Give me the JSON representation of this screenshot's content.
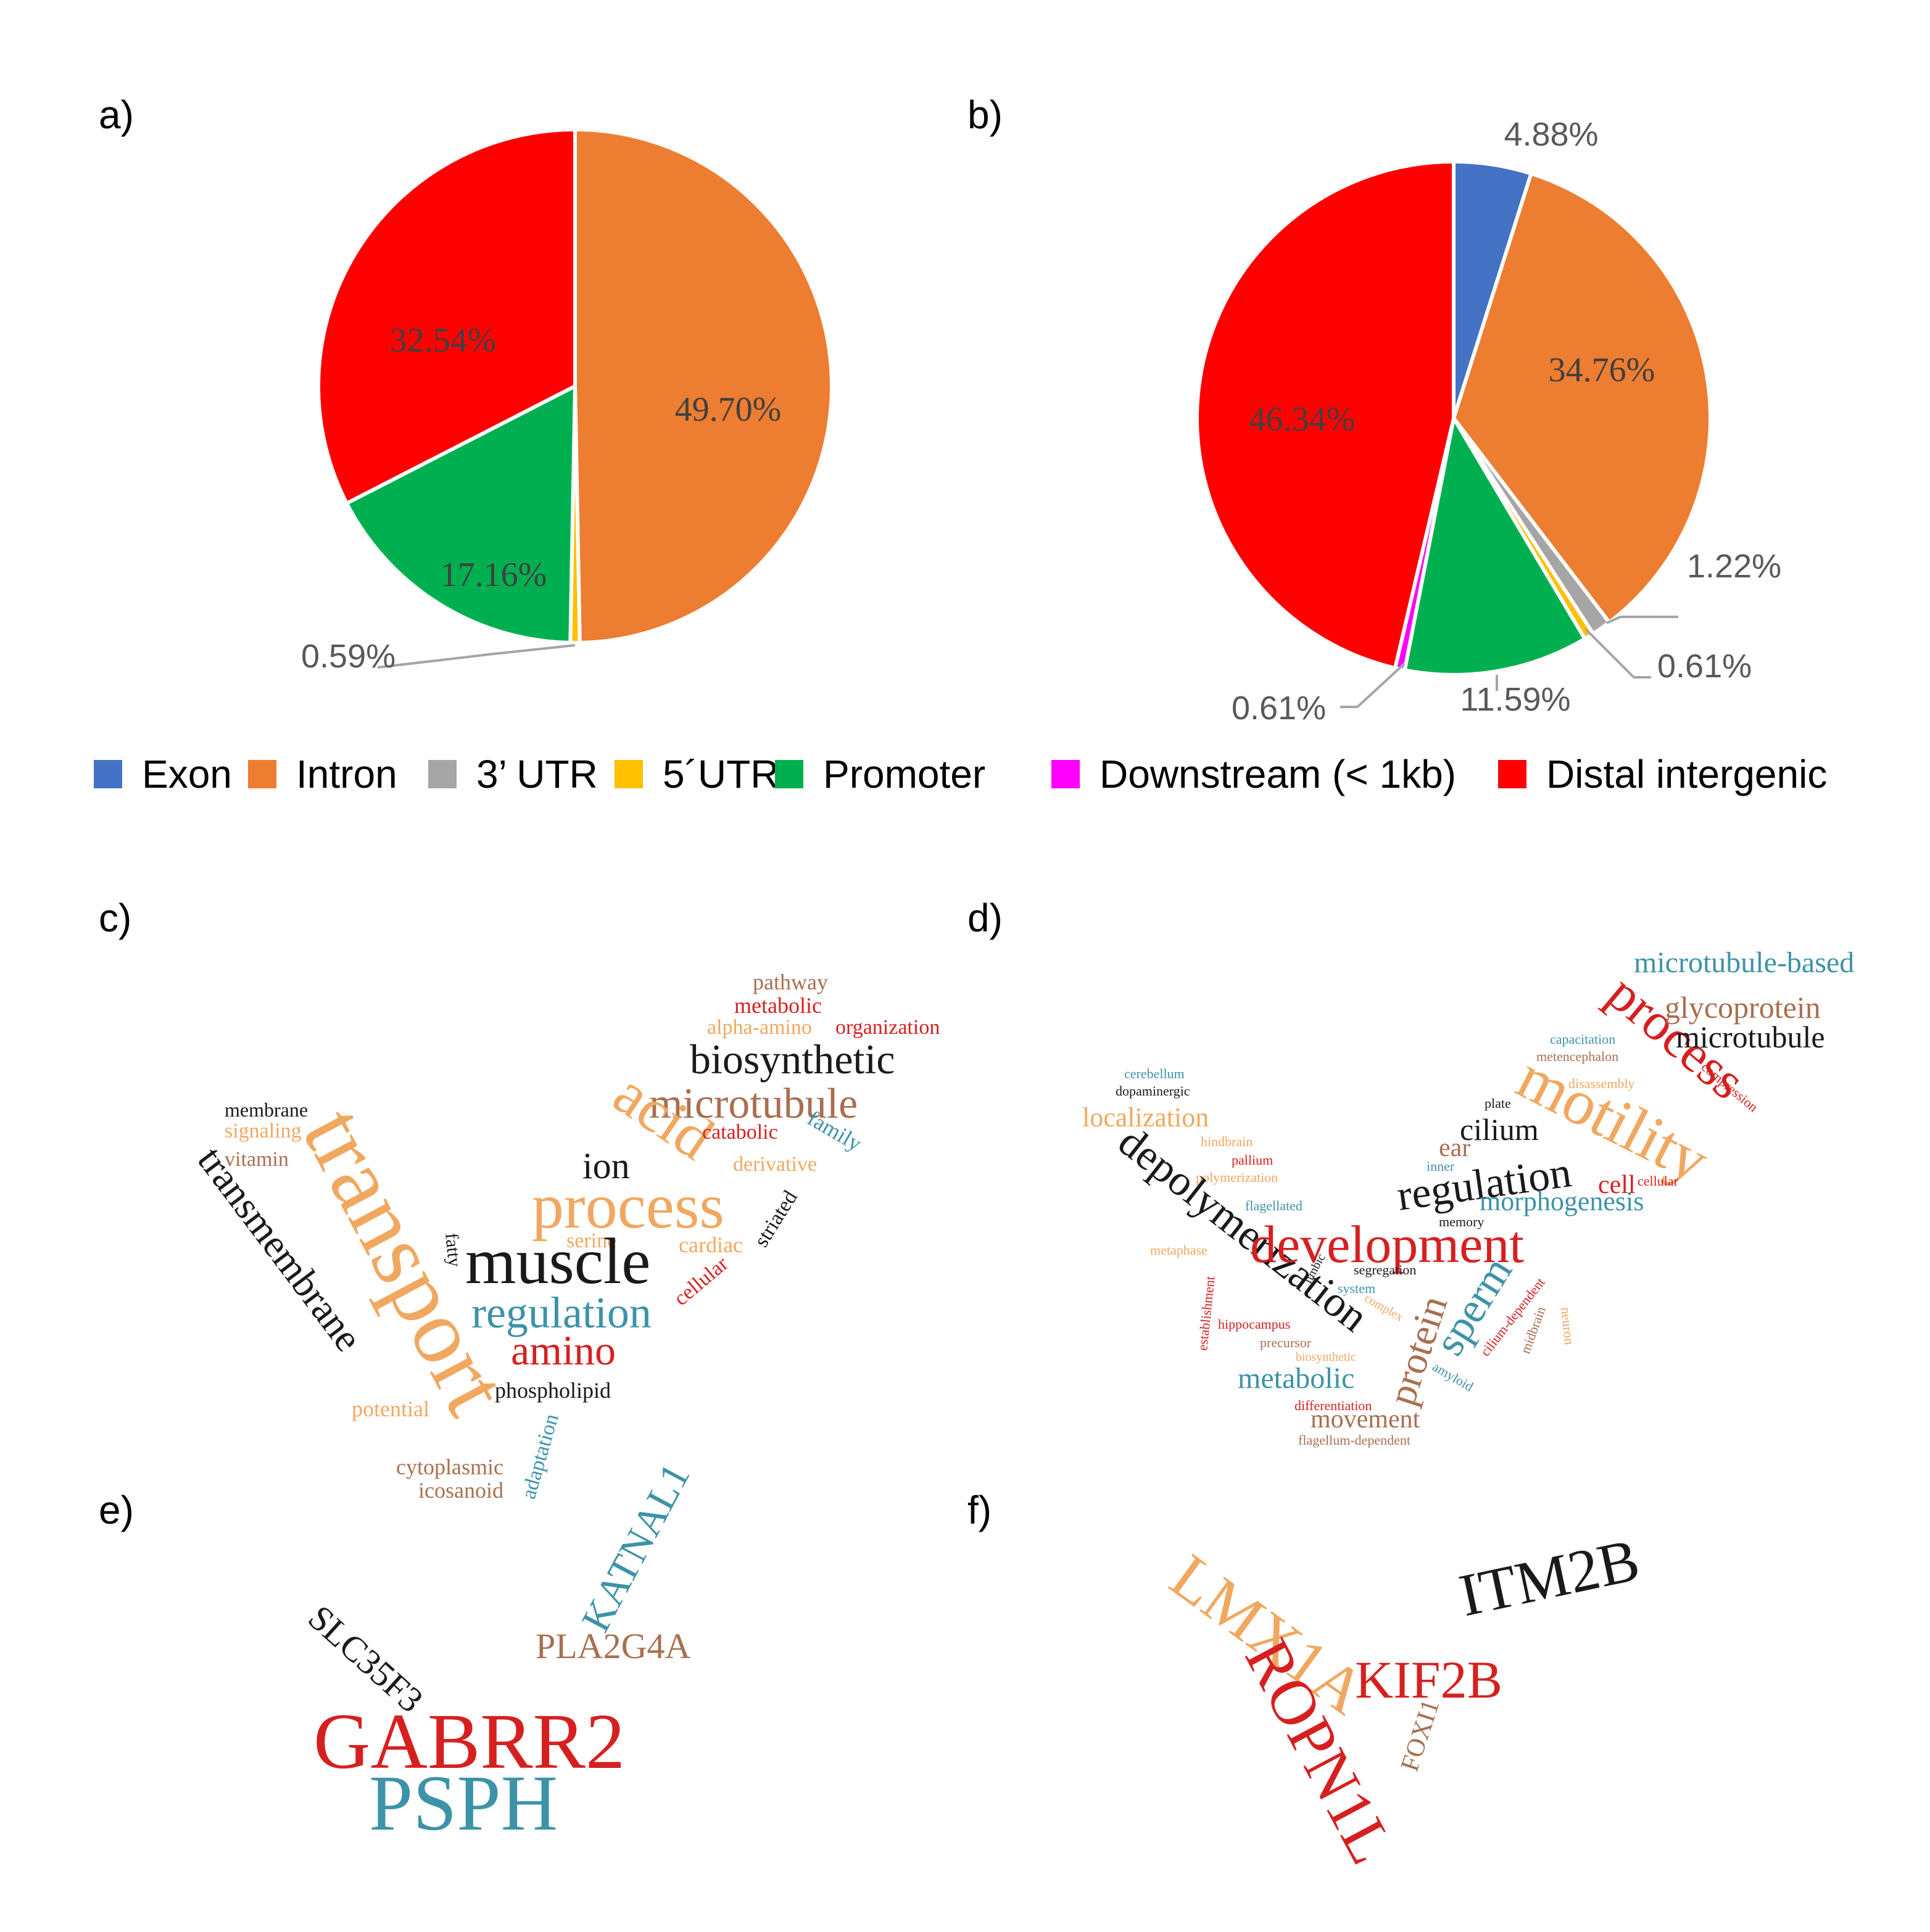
{
  "figure": {
    "panel_labels": [
      "a)",
      "b)",
      "c)",
      "d)",
      "e)",
      "f)"
    ]
  },
  "colors": {
    "Exon": "#4472C4",
    "Intron": "#ED7D31",
    "3' UTR": "#A5A5A5",
    "5'UTR": "#FFC000",
    "Promoter": "#00B050",
    "Downstream": "#FF00FF",
    "Distal": "#FF0000",
    "leader": "#A5A5A5",
    "wc_palette": {
      "orange": "#F0A860",
      "black": "#1A1A1A",
      "red": "#D62020",
      "blue": "#3D93A8",
      "brown": "#A86F50"
    }
  },
  "chart_data": [
    {
      "type": "pie",
      "panel": "a)",
      "categories": [
        "Exon",
        "Intron",
        "3' UTR",
        "5'UTR",
        "Promoter",
        "Downstream (< 1kb)",
        "Distal intergenic"
      ],
      "values": [
        0,
        49.7,
        0,
        0.59,
        17.16,
        0,
        32.54
      ],
      "labels": [
        "",
        "49.70%",
        "",
        "0.59%",
        "17.16%",
        "",
        "32.54%"
      ]
    },
    {
      "type": "pie",
      "panel": "b)",
      "categories": [
        "Exon",
        "Intron",
        "3' UTR",
        "5'UTR",
        "Promoter",
        "Downstream (< 1kb)",
        "Distal intergenic"
      ],
      "values": [
        4.88,
        34.76,
        1.22,
        0.61,
        11.59,
        0.61,
        46.34
      ],
      "labels": [
        "4.88%",
        "34.76%",
        "1.22%",
        "0.61%",
        "11.59%",
        "0.61%",
        "46.34%"
      ]
    }
  ],
  "legend": {
    "items": [
      "Exon",
      "Intron",
      "3’ UTR",
      "5´UTR",
      "Promoter",
      "Downstream (< 1kb)",
      "Distal intergenic"
    ]
  },
  "wordclouds": {
    "c": [
      {
        "t": "pathway",
        "c": "brown"
      },
      {
        "t": "metabolic",
        "c": "red"
      },
      {
        "t": "alpha-amino",
        "c": "orange"
      },
      {
        "t": "organization",
        "c": "red"
      },
      {
        "t": "biosynthetic",
        "c": "black"
      },
      {
        "t": "microtubule",
        "c": "brown"
      },
      {
        "t": "membrane",
        "c": "black"
      },
      {
        "t": "signaling",
        "c": "orange"
      },
      {
        "t": "vitamin",
        "c": "brown"
      },
      {
        "t": "transport",
        "c": "orange"
      },
      {
        "t": "acid",
        "c": "orange"
      },
      {
        "t": "catabolic",
        "c": "red"
      },
      {
        "t": "family",
        "c": "blue"
      },
      {
        "t": "ion",
        "c": "black"
      },
      {
        "t": "derivative",
        "c": "orange"
      },
      {
        "t": "process",
        "c": "orange"
      },
      {
        "t": "striated",
        "c": "black"
      },
      {
        "t": "serine",
        "c": "orange"
      },
      {
        "t": "transmembrane",
        "c": "black"
      },
      {
        "t": "cardiac",
        "c": "orange"
      },
      {
        "t": "fatty",
        "c": "black"
      },
      {
        "t": "muscle",
        "c": "black"
      },
      {
        "t": "cellular",
        "c": "red"
      },
      {
        "t": "regulation",
        "c": "blue"
      },
      {
        "t": "amino",
        "c": "red"
      },
      {
        "t": "phospholipid",
        "c": "black"
      },
      {
        "t": "potential",
        "c": "orange"
      },
      {
        "t": "adaptation",
        "c": "blue"
      },
      {
        "t": "cytoplasmic",
        "c": "brown"
      },
      {
        "t": "icosanoid",
        "c": "brown"
      }
    ],
    "d": [
      {
        "t": "microtubule-based",
        "c": "blue"
      },
      {
        "t": "process",
        "c": "red"
      },
      {
        "t": "glycoprotein",
        "c": "brown"
      },
      {
        "t": "microtubule",
        "c": "black"
      },
      {
        "t": "capacitation",
        "c": "blue"
      },
      {
        "t": "metencephalon",
        "c": "brown"
      },
      {
        "t": "compression",
        "c": "red"
      },
      {
        "t": "cerebellum",
        "c": "blue"
      },
      {
        "t": "dopaminergic",
        "c": "black"
      },
      {
        "t": "motility",
        "c": "orange"
      },
      {
        "t": "disassembly",
        "c": "orange"
      },
      {
        "t": "localization",
        "c": "orange"
      },
      {
        "t": "plate",
        "c": "black"
      },
      {
        "t": "cilium",
        "c": "black"
      },
      {
        "t": "hindbrain",
        "c": "orange"
      },
      {
        "t": "ear",
        "c": "brown"
      },
      {
        "t": "pallium",
        "c": "red"
      },
      {
        "t": "inner",
        "c": "blue"
      },
      {
        "t": "regulation",
        "c": "black"
      },
      {
        "t": "polymerization",
        "c": "orange"
      },
      {
        "t": "cell",
        "c": "red"
      },
      {
        "t": "cellular",
        "c": "red"
      },
      {
        "t": "depolymerization",
        "c": "black"
      },
      {
        "t": "flagellated",
        "c": "blue"
      },
      {
        "t": "morphogenesis",
        "c": "blue"
      },
      {
        "t": "memory",
        "c": "black"
      },
      {
        "t": "development",
        "c": "red"
      },
      {
        "t": "metaphase",
        "c": "orange"
      },
      {
        "t": "limbic",
        "c": "black"
      },
      {
        "t": "segregation",
        "c": "black"
      },
      {
        "t": "system",
        "c": "blue"
      },
      {
        "t": "complex",
        "c": "orange"
      },
      {
        "t": "establishment",
        "c": "red"
      },
      {
        "t": "sperm",
        "c": "blue"
      },
      {
        "t": "cilium-dependent",
        "c": "red"
      },
      {
        "t": "midbrain",
        "c": "brown"
      },
      {
        "t": "neuron",
        "c": "orange"
      },
      {
        "t": "hippocampus",
        "c": "red"
      },
      {
        "t": "precursor",
        "c": "brown"
      },
      {
        "t": "biosynthetic",
        "c": "orange"
      },
      {
        "t": "protein",
        "c": "brown"
      },
      {
        "t": "amyloid",
        "c": "blue"
      },
      {
        "t": "metabolic",
        "c": "blue"
      },
      {
        "t": "differentiation",
        "c": "red"
      },
      {
        "t": "movement",
        "c": "brown"
      },
      {
        "t": "flagellum-dependent",
        "c": "brown"
      }
    ],
    "e": [
      {
        "t": "KATNAL1",
        "c": "blue"
      },
      {
        "t": "PLA2G4A",
        "c": "brown"
      },
      {
        "t": "SLC35F3",
        "c": "black"
      },
      {
        "t": "GABRR2",
        "c": "red"
      },
      {
        "t": "PSPH",
        "c": "blue"
      }
    ],
    "f": [
      {
        "t": "ITM2B",
        "c": "black"
      },
      {
        "t": "LMX1A",
        "c": "orange"
      },
      {
        "t": "KIF2B",
        "c": "red"
      },
      {
        "t": "ROPN1L",
        "c": "red"
      },
      {
        "t": "FOXI1",
        "c": "brown"
      }
    ]
  }
}
